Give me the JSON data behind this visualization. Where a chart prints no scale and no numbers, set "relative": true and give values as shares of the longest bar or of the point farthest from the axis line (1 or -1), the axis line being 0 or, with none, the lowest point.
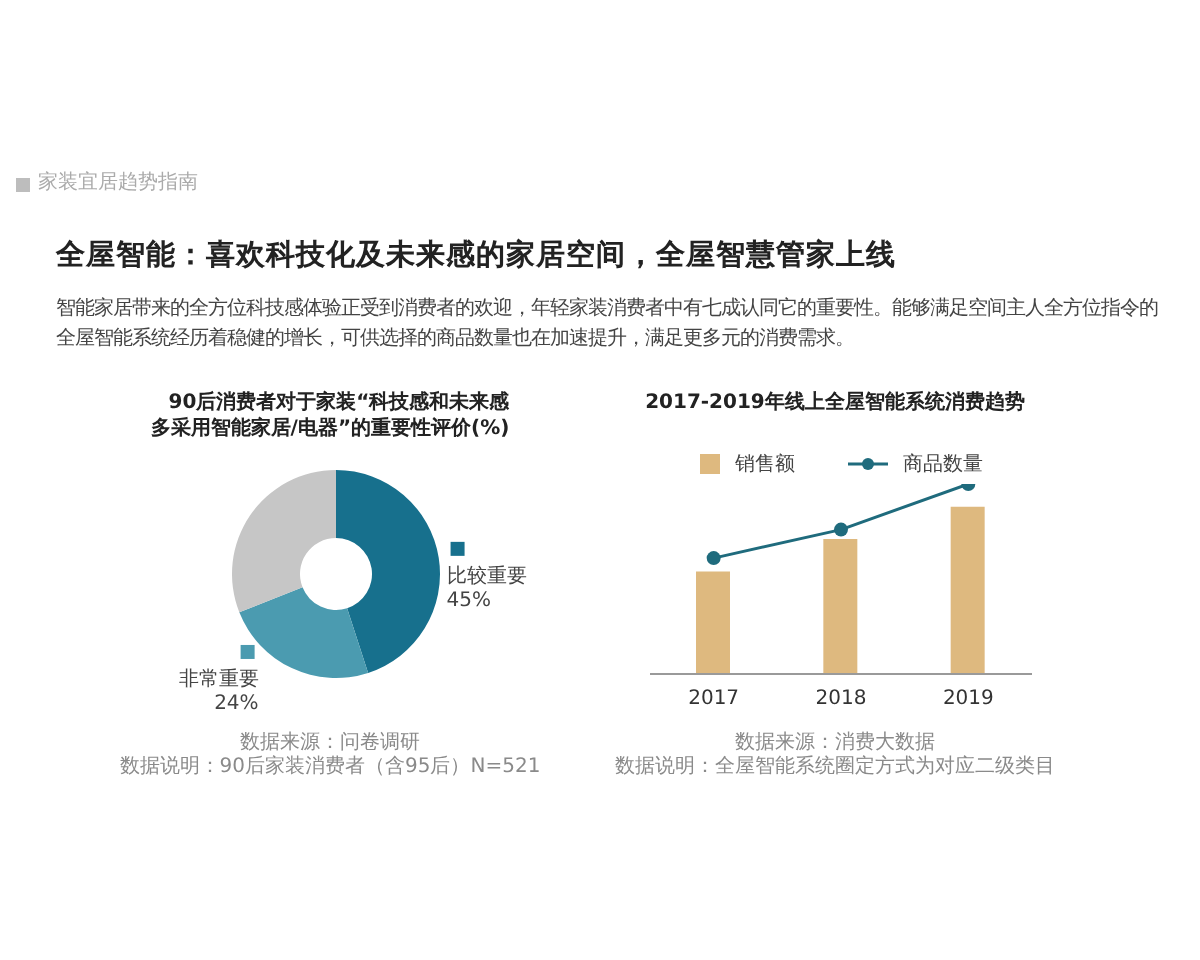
{
  "chart_data": [
    {
      "type": "other",
      "title": "全屋智能：喜欢科技化及未来感的家居空间，全屋智慧管家上线",
      "subtitle": "智能家居带来的全方位科技感体验正受到消费者的欢迎，年轻家装消费者中有七成认同它的重要性。能够满足空间主人全方位指令的全屋智能系统经历着稳健的增长，可供选择的商品数量也在加速提升，满足更多元的消费需求。",
      "annotations": [
        "家装宜居趋势指南"
      ]
    },
    {
      "type": "donut",
      "title": "90后消费者对于家装“科技感和未来感多采用智能家居/电器”的重要性评价(%)",
      "categories": [
        "比较重要",
        "非常重要",
        null
      ],
      "values": [
        45,
        24,
        31
      ],
      "colors": [
        "#17708d",
        "#4b9bb0",
        "#c6c6c6"
      ],
      "value_labels": [
        "45%",
        "24%",
        null
      ],
      "legend": "right",
      "annotations": [
        "数据来源：问卷调研",
        "数据说明：90后家装消费者（含95后）N=521"
      ]
    },
    {
      "type": "bar",
      "title": "2017-2019年线上全屋智能系统消费趋势",
      "categories": [
        "2017",
        "2018",
        "2019"
      ],
      "relative": true,
      "series": [
        {
          "name": "销售额",
          "color": "#deb97f",
          "values": [
            0.54,
            0.71,
            0.88
          ]
        },
        {
          "name": "商品数量",
          "type": "line",
          "color": "#1f6b7d",
          "values": [
            0.61,
            0.76,
            1
          ]
        }
      ],
      "legend": "top",
      "marker": "circle",
      "annotations": [
        "数据来源：消费大数据",
        "数据说明：全屋智能系统圈定方式为对应二级类目"
      ]
    }
  ]
}
